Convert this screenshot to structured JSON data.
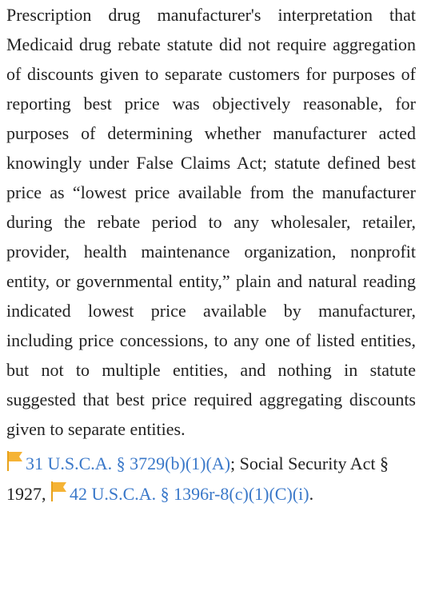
{
  "headnote": {
    "text": "Prescription drug manufacturer's interpretation that Medicaid drug rebate statute did not require aggregation of discounts given to separate customers for purposes of reporting best price was objectively reasonable, for purposes of determining whether manufacturer acted knowingly under False Claims Act; statute defined best price as “lowest price available from the manufacturer during the rebate period to any wholesaler, retailer, provider, health maintenance organization, nonprofit entity, or governmental entity,” plain and natural reading indicated lowest price available by manufacturer, including price concessions, to any one of listed entities, but not to multiple entities, and nothing in statute suggested that best price required aggregating discounts given to separate entities.",
    "citations": {
      "link_1": "31 U.S.C.A. § 3729(b)(1)(A)",
      "middle": "; Social Security Act § 1927, ",
      "link_2": "42 U.S.C.A. § 1396r-8(c)(1)(C)(i)",
      "end": "."
    }
  }
}
